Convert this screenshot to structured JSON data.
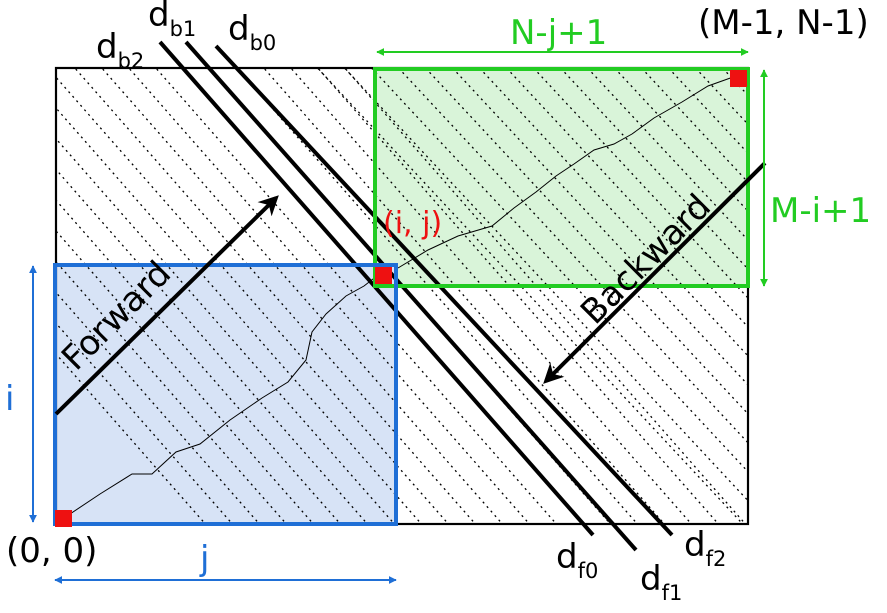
{
  "labels": {
    "corner_top_right": "(M-1, N-1)",
    "corner_bottom_left": "(0, 0)",
    "point_ij": "(i, j)",
    "green_width": "N-j+1",
    "green_height": "M-i+1",
    "blue_height": "i",
    "blue_width": "j",
    "forward": "Forward",
    "backward": "Backward",
    "d_letter": "d",
    "db2_sub": "b2",
    "db1_sub": "b1",
    "db0_sub": "b0",
    "df0_sub": "f0",
    "df1_sub": "f1",
    "df2_sub": "f2"
  },
  "colors": {
    "green": "#22cc22",
    "green_fill": "#d9f4d9",
    "blue": "#1f6fd6",
    "blue_fill": "#d7e3f6",
    "red": "#ee1111",
    "black": "#000000"
  }
}
